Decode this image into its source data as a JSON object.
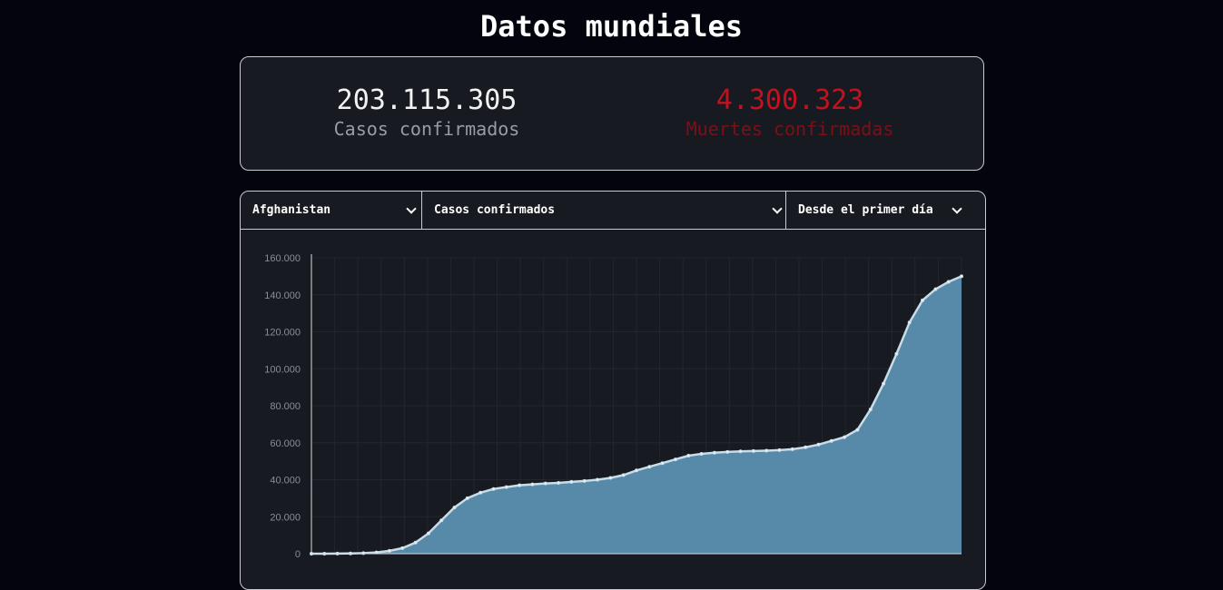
{
  "page": {
    "title": "Datos mundiales"
  },
  "stats": {
    "cases": {
      "value": "203.115.305",
      "label": "Casos confirmados"
    },
    "deaths": {
      "value": "4.300.323",
      "label": "Muertes confirmadas"
    }
  },
  "controls": {
    "country": "Afghanistan",
    "metric": "Casos confirmados",
    "range": "Desde el primer día"
  },
  "colors": {
    "area_fill": "#568aa8",
    "line": "#c9dde8",
    "deaths_accent": "#c1121f"
  },
  "chart_data": {
    "type": "area",
    "title": "",
    "xlabel": "",
    "ylabel": "",
    "ylim": [
      0,
      160000
    ],
    "y_ticks": [
      {
        "value": 0,
        "label": "0"
      },
      {
        "value": 20000,
        "label": "20.000"
      },
      {
        "value": 40000,
        "label": "40.000"
      },
      {
        "value": 60000,
        "label": "60.000"
      },
      {
        "value": 80000,
        "label": "80.000"
      },
      {
        "value": 100000,
        "label": "100.000"
      },
      {
        "value": 120000,
        "label": "120.000"
      },
      {
        "value": 140000,
        "label": "140.000"
      },
      {
        "value": 160000,
        "label": "160.000"
      }
    ],
    "grid": true,
    "legend": "none",
    "series": [
      {
        "values": [
          0,
          0,
          50,
          150,
          300,
          700,
          1500,
          3000,
          6000,
          11000,
          18000,
          25000,
          30000,
          33000,
          35000,
          36000,
          37000,
          37500,
          38000,
          38300,
          38800,
          39300,
          40000,
          41000,
          42500,
          45000,
          47000,
          49000,
          51000,
          53000,
          54000,
          54600,
          55000,
          55300,
          55500,
          55700,
          56000,
          56500,
          57500,
          59000,
          61000,
          63000,
          67000,
          78000,
          92000,
          108000,
          125000,
          137000,
          143000,
          147000,
          150000
        ]
      }
    ]
  }
}
